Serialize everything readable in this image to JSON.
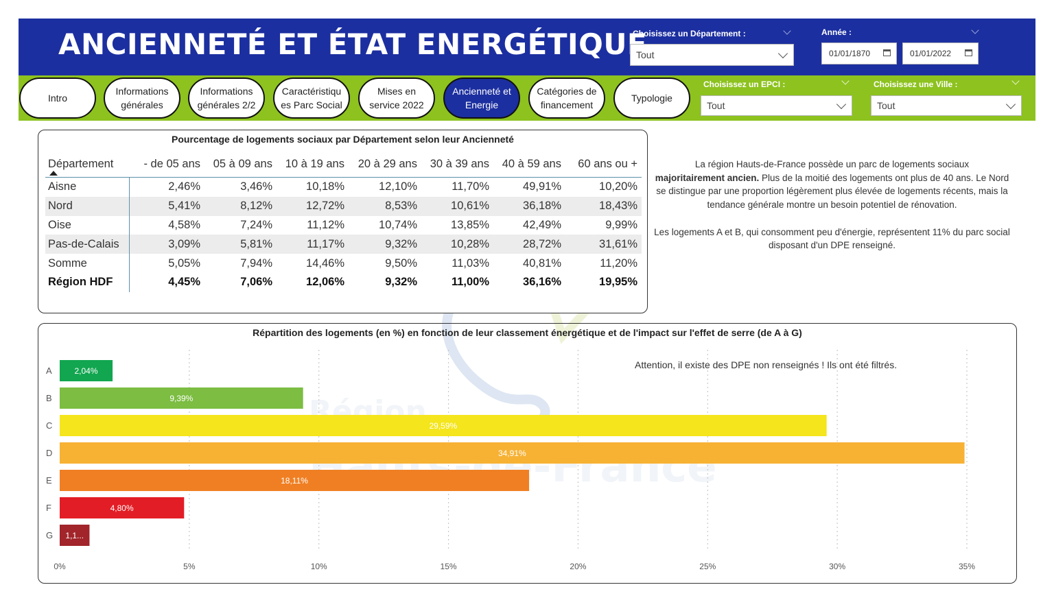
{
  "header": {
    "title": "ANCIENNETÉ ET ÉTAT ENERGÉTIQUE",
    "departement_slicer": {
      "label": "Choisissez un Département :",
      "value": "Tout"
    },
    "annee_slicer": {
      "label": "Année :",
      "start": "01/01/1870",
      "end": "01/01/2022"
    }
  },
  "nav": {
    "buttons": [
      {
        "label": "Intro",
        "active": false
      },
      {
        "label": "Informations\ngénérales",
        "active": false
      },
      {
        "label": "Informations\ngénérales 2/2",
        "active": false
      },
      {
        "label": "Caractéristiqu\nes Parc Social",
        "active": false
      },
      {
        "label": "Mises en\nservice 2022",
        "active": false
      },
      {
        "label": "Ancienneté et\nEnergie",
        "active": true
      },
      {
        "label": "Catégories de\nfinancement",
        "active": false
      },
      {
        "label": "Typologie",
        "active": false
      }
    ],
    "epci_slicer": {
      "label": "Choisissez un EPCI :",
      "value": "Tout"
    },
    "ville_slicer": {
      "label": "Choisissez une Ville :",
      "value": "Tout"
    }
  },
  "age_table": {
    "title": "Pourcentage de logements sociaux par Département selon leur Ancienneté",
    "columns": [
      "Département",
      "- de 05 ans",
      "05 à 09 ans",
      "10 à 19 ans",
      "20 à 29 ans",
      "30 à 39 ans",
      "40 à 59 ans",
      "60 ans ou +"
    ],
    "rows": [
      [
        "Aisne",
        "2,46%",
        "3,46%",
        "10,18%",
        "12,10%",
        "11,70%",
        "49,91%",
        "10,20%"
      ],
      [
        "Nord",
        "5,41%",
        "8,12%",
        "12,72%",
        "8,53%",
        "10,61%",
        "36,18%",
        "18,43%"
      ],
      [
        "Oise",
        "4,58%",
        "7,24%",
        "11,12%",
        "10,74%",
        "13,85%",
        "42,49%",
        "9,99%"
      ],
      [
        "Pas-de-Calais",
        "3,09%",
        "5,81%",
        "11,17%",
        "9,32%",
        "10,28%",
        "28,72%",
        "31,61%"
      ],
      [
        "Somme",
        "5,05%",
        "7,94%",
        "14,46%",
        "9,50%",
        "11,03%",
        "40,81%",
        "11,20%"
      ]
    ],
    "total": [
      "Région HDF",
      "4,45%",
      "7,06%",
      "12,06%",
      "9,32%",
      "11,00%",
      "36,16%",
      "19,95%"
    ]
  },
  "commentary": {
    "p1_a": "La région Hauts-de-France possède un parc de logements sociaux",
    "p1_bold": "majoritairement ancien.",
    "p1_b": " Plus de la moitié des logements ont plus de 40 ans. Le Nord se distingue par une proportion légèrement plus élevée de logements récents, mais la tendance générale montre un besoin potentiel de rénovation.",
    "p2": "Les logements A et B, qui consomment peu d'énergie, représentent 11% du parc social disposant d'un DPE renseigné."
  },
  "watermark": {
    "line1": "Région",
    "line2": "Hauts-de-France"
  },
  "chart_data": {
    "type": "bar",
    "orientation": "horizontal",
    "title": "Répartition des logements (en %) en fonction de leur classement énergétique et de l'impact sur l'effet de serre (de A à G)",
    "note": "Attention, il existe des DPE non renseignés ! Ils ont été filtrés.",
    "categories": [
      "A",
      "B",
      "C",
      "D",
      "E",
      "F",
      "G"
    ],
    "values": [
      2.04,
      9.39,
      29.59,
      34.91,
      18.11,
      4.8,
      1.15
    ],
    "data_labels": [
      "2,04%",
      "9,39%",
      "29,59%",
      "34,91%",
      "18,11%",
      "4,80%",
      "1,1..."
    ],
    "colors": [
      "#12a650",
      "#7cbd42",
      "#f4e51c",
      "#f7b234",
      "#f07f23",
      "#e31d25",
      "#a1252a"
    ],
    "xlim": [
      0,
      35
    ],
    "xticks": [
      0,
      5,
      10,
      15,
      20,
      25,
      30,
      35
    ],
    "xtick_labels": [
      "0%",
      "5%",
      "10%",
      "15%",
      "20%",
      "25%",
      "30%",
      "35%"
    ],
    "grid": "vertical dotted"
  },
  "colors": {
    "header_blue": "#1c2fa0",
    "nav_green": "#8dc21f"
  }
}
